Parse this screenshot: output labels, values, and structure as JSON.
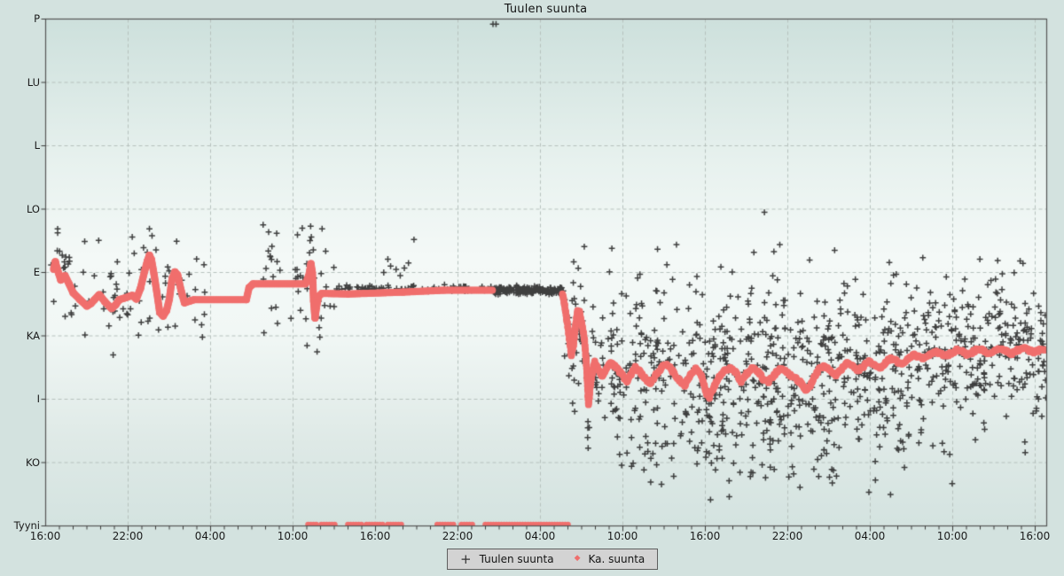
{
  "chart_data": {
    "type": "scatter",
    "title": "Tuulen suunta",
    "x_axis": {
      "tick_labels": [
        "16:00",
        "22:00",
        "04:00",
        "10:00",
        "16:00",
        "22:00",
        "04:00",
        "10:00",
        "16:00",
        "22:00",
        "04:00",
        "10:00",
        "16:00"
      ],
      "major_tick_hours": 6,
      "minor_tick_hours": 1,
      "range_hours": [
        0,
        72.8
      ]
    },
    "y_axis": {
      "categories": [
        "P",
        "LU",
        "L",
        "LO",
        "E",
        "KA",
        "I",
        "KO",
        "Tyyni"
      ],
      "top": "P",
      "bottom": "Tyyni"
    },
    "legend": {
      "position": "bottom-center",
      "entries": [
        {
          "label": "Tuulen suunta",
          "marker": "plus",
          "marker_glyph": "+",
          "color": "#333333"
        },
        {
          "label": "Ka. suunta",
          "marker": "diamond",
          "marker_glyph": "◆",
          "color": "#ef6e6c"
        }
      ]
    },
    "grid": {
      "dashed": true,
      "color": "#b6c0bd"
    },
    "series": [
      {
        "name": "Tuulen suunta",
        "type": "scatter-plus",
        "color": "#383838",
        "regions": [
          {
            "t0": 0.3,
            "t1": 11.6,
            "n": 85,
            "mode": "avg",
            "sd": 0.42,
            "clip": [
              3.2,
              5.35
            ],
            "seed": 11
          },
          {
            "t0": 15.8,
            "t1": 21.0,
            "n": 42,
            "mode": "avg",
            "sd": 0.55,
            "clip": [
              3.2,
              5.4
            ],
            "seed": 22
          },
          {
            "t0": 20.3,
            "t1": 32.5,
            "n": 70,
            "mode": "fixed",
            "v": 4.25,
            "sd": 0.025,
            "clip": [
              4.1,
              4.4
            ],
            "seed": 44
          },
          {
            "t0": 32.5,
            "t1": 37.55,
            "n": 170,
            "mode": "fixed",
            "v": 4.28,
            "sd": 0.03,
            "clip": [
              4.15,
              4.42
            ],
            "seed": 55
          },
          {
            "t0": 37.6,
            "t1": 41.0,
            "n": 70,
            "mode": "avg",
            "sd": 0.5,
            "clip": [
              3.5,
              7.0
            ],
            "seed": 66
          },
          {
            "t0": 41.0,
            "t1": 58.0,
            "n": 520,
            "mode": "avg",
            "sd": 0.8,
            "clip": [
              3.5,
              7.3
            ],
            "seed": 77
          },
          {
            "t0": 58.0,
            "t1": 72.8,
            "n": 430,
            "mode": "avg",
            "sd": 0.62,
            "clip": [
              3.6,
              7.0
            ],
            "seed": 88
          },
          {
            "t0": 44.0,
            "t1": 66.0,
            "n": 60,
            "mode": "uniform",
            "vmin": 6.0,
            "vmax": 7.6,
            "seed": 99
          }
        ],
        "outliers": [
          [
            2.84,
            3.51
          ],
          [
            6.3,
            3.44
          ],
          [
            7.55,
            3.31
          ],
          [
            7.74,
            3.42
          ],
          [
            16.2,
            3.66
          ],
          [
            16.35,
            3.75
          ],
          [
            19.2,
            3.69
          ],
          [
            19.28,
            3.27
          ],
          [
            19.33,
            3.44
          ],
          [
            19.75,
            5.25
          ],
          [
            19.9,
            4.87
          ],
          [
            19.95,
            5.02
          ],
          [
            20.05,
            4.72
          ],
          [
            20.3,
            4.52
          ],
          [
            20.7,
            4.53
          ],
          [
            21.9,
            4.2
          ],
          [
            24.6,
            4.0
          ],
          [
            24.9,
            3.79
          ],
          [
            25.1,
            3.9
          ],
          [
            25.5,
            3.95
          ],
          [
            25.8,
            4.05
          ],
          [
            26.1,
            3.93
          ],
          [
            26.4,
            3.85
          ],
          [
            26.8,
            3.48
          ],
          [
            32.55,
            0.08
          ],
          [
            32.77,
            0.08
          ],
          [
            41.2,
            3.62
          ],
          [
            45.9,
            3.56
          ],
          [
            52.3,
            3.05
          ]
        ]
      },
      {
        "name": "Ka. suunta",
        "type": "average-line",
        "color": "#f06f6d",
        "line_segments": [
          [
            [
              0.58,
              3.95
            ],
            [
              0.7,
              3.83
            ],
            [
              0.85,
              3.95
            ],
            [
              1.1,
              4.12
            ],
            [
              1.4,
              4.05
            ],
            [
              1.7,
              4.18
            ],
            [
              2.0,
              4.32
            ],
            [
              2.5,
              4.43
            ],
            [
              3.0,
              4.53
            ],
            [
              3.3,
              4.49
            ],
            [
              3.55,
              4.43
            ],
            [
              3.9,
              4.35
            ],
            [
              4.3,
              4.46
            ],
            [
              4.8,
              4.57
            ],
            [
              5.1,
              4.51
            ],
            [
              5.35,
              4.43
            ],
            [
              5.8,
              4.4
            ],
            [
              6.3,
              4.36
            ],
            [
              6.6,
              4.42
            ],
            [
              6.9,
              4.25
            ],
            [
              7.2,
              3.98
            ],
            [
              7.4,
              3.82
            ],
            [
              7.55,
              3.73
            ],
            [
              7.7,
              3.8
            ],
            [
              7.9,
              4.05
            ],
            [
              8.1,
              4.33
            ],
            [
              8.3,
              4.63
            ],
            [
              8.55,
              4.69
            ],
            [
              8.8,
              4.6
            ],
            [
              9.0,
              4.42
            ],
            [
              9.2,
              4.1
            ],
            [
              9.4,
              3.99
            ],
            [
              9.6,
              4.04
            ],
            [
              9.85,
              4.28
            ],
            [
              10.1,
              4.48
            ],
            [
              10.5,
              4.45
            ],
            [
              10.8,
              4.43
            ],
            [
              14.6,
              4.43
            ],
            [
              14.8,
              4.24
            ],
            [
              15.1,
              4.18
            ],
            [
              18.9,
              4.18
            ],
            [
              19.15,
              4.05
            ],
            [
              19.3,
              3.86
            ],
            [
              19.4,
              4.0
            ],
            [
              19.45,
              4.2
            ],
            [
              19.5,
              4.45
            ],
            [
              19.6,
              4.72
            ],
            [
              19.7,
              4.55
            ],
            [
              19.85,
              4.38
            ],
            [
              20.1,
              4.33
            ],
            [
              22.0,
              4.34
            ],
            [
              26.0,
              4.31
            ],
            [
              29.0,
              4.28
            ],
            [
              32.5,
              4.28
            ]
          ],
          [
            [
              37.6,
              4.33
            ],
            [
              37.75,
              4.5
            ],
            [
              37.9,
              4.72
            ],
            [
              38.05,
              4.95
            ],
            [
              38.25,
              5.3
            ],
            [
              38.4,
              5.15
            ],
            [
              38.55,
              4.85
            ],
            [
              38.7,
              4.62
            ],
            [
              38.85,
              4.62
            ],
            [
              39.0,
              4.8
            ],
            [
              39.2,
              5.05
            ],
            [
              39.35,
              5.45
            ],
            [
              39.5,
              6.08
            ],
            [
              39.6,
              5.85
            ],
            [
              39.75,
              5.6
            ],
            [
              39.95,
              5.42
            ],
            [
              40.2,
              5.52
            ],
            [
              40.5,
              5.65
            ],
            [
              40.8,
              5.52
            ],
            [
              41.1,
              5.42
            ],
            [
              41.5,
              5.5
            ],
            [
              41.9,
              5.6
            ],
            [
              42.3,
              5.72
            ],
            [
              42.6,
              5.6
            ],
            [
              42.9,
              5.5
            ],
            [
              43.2,
              5.55
            ],
            [
              43.6,
              5.67
            ],
            [
              44.0,
              5.75
            ],
            [
              44.4,
              5.62
            ],
            [
              44.8,
              5.5
            ],
            [
              45.2,
              5.45
            ],
            [
              45.6,
              5.55
            ],
            [
              46.1,
              5.7
            ],
            [
              46.5,
              5.78
            ],
            [
              46.9,
              5.62
            ],
            [
              47.3,
              5.52
            ],
            [
              47.7,
              5.62
            ],
            [
              48.1,
              5.92
            ],
            [
              48.3,
              5.97
            ],
            [
              48.6,
              5.82
            ],
            [
              49.0,
              5.65
            ],
            [
              49.4,
              5.55
            ],
            [
              49.8,
              5.5
            ],
            [
              50.2,
              5.58
            ],
            [
              50.6,
              5.72
            ],
            [
              51.0,
              5.6
            ],
            [
              51.4,
              5.5
            ],
            [
              51.8,
              5.55
            ],
            [
              52.2,
              5.68
            ],
            [
              52.6,
              5.72
            ],
            [
              53.0,
              5.62
            ],
            [
              53.4,
              5.52
            ],
            [
              53.8,
              5.55
            ],
            [
              54.2,
              5.62
            ],
            [
              54.6,
              5.68
            ],
            [
              55.0,
              5.75
            ],
            [
              55.3,
              5.88
            ],
            [
              55.6,
              5.8
            ],
            [
              55.9,
              5.65
            ],
            [
              56.3,
              5.52
            ],
            [
              56.7,
              5.48
            ],
            [
              57.1,
              5.55
            ],
            [
              57.5,
              5.62
            ],
            [
              57.9,
              5.52
            ],
            [
              58.3,
              5.42
            ],
            [
              58.7,
              5.47
            ],
            [
              59.1,
              5.55
            ],
            [
              59.5,
              5.48
            ],
            [
              59.9,
              5.4
            ],
            [
              60.3,
              5.45
            ],
            [
              60.7,
              5.5
            ],
            [
              61.1,
              5.42
            ],
            [
              61.5,
              5.35
            ],
            [
              61.9,
              5.4
            ],
            [
              62.3,
              5.45
            ],
            [
              62.7,
              5.38
            ],
            [
              63.1,
              5.3
            ],
            [
              63.5,
              5.33
            ],
            [
              63.9,
              5.36
            ],
            [
              64.3,
              5.3
            ],
            [
              64.7,
              5.25
            ],
            [
              65.1,
              5.28
            ],
            [
              65.5,
              5.32
            ],
            [
              65.9,
              5.27
            ],
            [
              66.3,
              5.22
            ],
            [
              66.7,
              5.25
            ],
            [
              67.1,
              5.3
            ],
            [
              67.5,
              5.25
            ],
            [
              67.9,
              5.2
            ],
            [
              68.3,
              5.24
            ],
            [
              68.7,
              5.28
            ],
            [
              69.1,
              5.24
            ],
            [
              69.5,
              5.2
            ],
            [
              69.9,
              5.24
            ],
            [
              70.3,
              5.28
            ],
            [
              70.7,
              5.23
            ],
            [
              71.1,
              5.19
            ],
            [
              71.5,
              5.23
            ],
            [
              71.9,
              5.26
            ],
            [
              72.3,
              5.22
            ],
            [
              72.8,
              5.24
            ]
          ]
        ],
        "calm_segments_hours": [
          [
            19.1,
            19.8
          ],
          [
            20.06,
            21.03
          ],
          [
            22.0,
            23.16
          ],
          [
            23.35,
            24.65
          ],
          [
            24.9,
            26.06
          ],
          [
            28.5,
            29.74
          ],
          [
            30.26,
            31.1
          ],
          [
            32.0,
            38.0
          ]
        ]
      }
    ]
  },
  "colors": {
    "background": "#d3e2df",
    "plot_top": "#cde0dc",
    "plot_mid": "#f4f9f7",
    "plot_bottom": "#d4e3e0",
    "frame": "#555555",
    "tick": "#3c3c3c",
    "legend_bg": "#d3d3d3"
  }
}
